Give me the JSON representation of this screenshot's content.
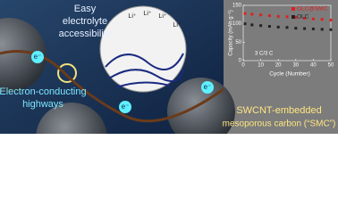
{
  "intro": {
    "top_text": [
      "Easy",
      "electrolyte",
      "accessibility"
    ],
    "highway_text": [
      "Electron-conducting",
      "highways"
    ],
    "material_text": [
      "SWCNT-embedded",
      "mesoporous carbon (“SMC”)"
    ],
    "li_labels": [
      "Li⁺",
      "Li⁺",
      "Li⁺",
      "Li⁺"
    ],
    "e_labels": [
      "e⁻",
      "e⁻",
      "e⁻"
    ]
  },
  "chart_data": {
    "type": "scatter",
    "xlabel": "Cycle (Number)",
    "ylabel": "Capacity (mAh g⁻¹)",
    "annotation": "3 C/3 C",
    "x": [
      1,
      5,
      10,
      15,
      20,
      25,
      30,
      35,
      40,
      45,
      50
    ],
    "series": [
      {
        "name": "OLC@SMC",
        "color": "#e02020",
        "values": [
          128,
          126,
          124,
          122,
          120,
          119,
          117,
          115,
          113,
          112,
          110
        ]
      },
      {
        "name": "OLC",
        "color": "#222222",
        "values": [
          100,
          97,
          95,
          93,
          91,
          90,
          88,
          87,
          86,
          85,
          84
        ]
      }
    ],
    "xlim": [
      0,
      50
    ],
    "xticks": [
      0,
      10,
      20,
      30,
      40,
      50
    ],
    "ylim": [
      0,
      150
    ],
    "yticks": [
      0,
      50,
      100,
      150
    ]
  }
}
